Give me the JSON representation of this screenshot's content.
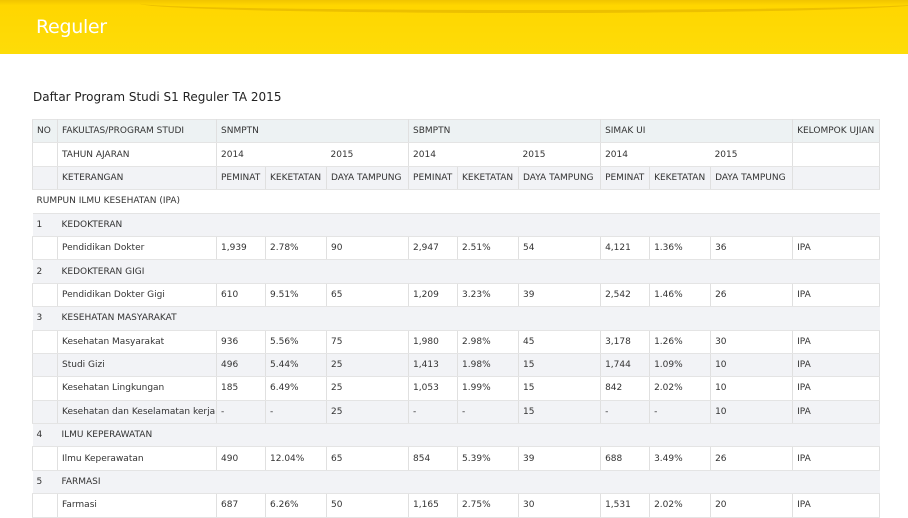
{
  "banner": {
    "title": "Reguler"
  },
  "page_title": "Daftar Program Studi S1 Reguler TA 2015",
  "table": {
    "header": {
      "no": "NO",
      "program": "FAKULTAS/PROGRAM STUDI",
      "snmptn": "SNMPTN",
      "sbmptn": "SBMPTN",
      "simak": "SIMAK UI",
      "kelompok": "KELOMPOK UJIAN"
    },
    "year_row": {
      "label": "TAHUN AJARAN",
      "snmptn_y1": "2014",
      "snmptn_y2": "2015",
      "sbmptn_y1": "2014",
      "sbmptn_y2": "2015",
      "simak_y1": "2014",
      "simak_y2": "2015"
    },
    "keterangan_row": {
      "label": "KETERANGAN",
      "peminat": "PEMINAT",
      "keketatan": "KEKETATAN",
      "daya_tampung": "DAYA TAMPUNG"
    },
    "rumpun": "RUMPUN ILMU KESEHATAN (IPA)",
    "faculties": [
      {
        "no": "1",
        "name": "KEDOKTERAN",
        "programs": [
          {
            "name": "Pendidikan Dokter",
            "values": [
              "1,939",
              "2.78%",
              "90",
              "2,947",
              "2.51%",
              "54",
              "4,121",
              "1.36%",
              "36"
            ],
            "kelompok": "IPA"
          }
        ]
      },
      {
        "no": "2",
        "name": "KEDOKTERAN GIGI",
        "programs": [
          {
            "name": "Pendidikan Dokter Gigi",
            "values": [
              "610",
              "9.51%",
              "65",
              "1,209",
              "3.23%",
              "39",
              "2,542",
              "1.46%",
              "26"
            ],
            "kelompok": "IPA"
          }
        ]
      },
      {
        "no": "3",
        "name": "KESEHATAN MASYARAKAT",
        "programs": [
          {
            "name": "Kesehatan Masyarakat",
            "values": [
              "936",
              "5.56%",
              "75",
              "1,980",
              "2.98%",
              "45",
              "3,178",
              "1.26%",
              "30"
            ],
            "kelompok": "IPA"
          },
          {
            "name": "Studi Gizi",
            "values": [
              "496",
              "5.44%",
              "25",
              "1,413",
              "1.98%",
              "15",
              "1,744",
              "1.09%",
              "10"
            ],
            "kelompok": "IPA"
          },
          {
            "name": "Kesehatan Lingkungan",
            "values": [
              "185",
              "6.49%",
              "25",
              "1,053",
              "1.99%",
              "15",
              "842",
              "2.02%",
              "10"
            ],
            "kelompok": "IPA"
          },
          {
            "name": "Kesehatan dan Keselamatan kerja",
            "values": [
              "-",
              "-",
              "25",
              "-",
              "-",
              "15",
              "-",
              "-",
              "10"
            ],
            "kelompok": "IPA"
          }
        ]
      },
      {
        "no": "4",
        "name": "ILMU KEPERAWATAN",
        "programs": [
          {
            "name": "Ilmu Keperawatan",
            "values": [
              "490",
              "12.04%",
              "65",
              "854",
              "5.39%",
              "39",
              "688",
              "3.49%",
              "26"
            ],
            "kelompok": "IPA"
          }
        ]
      },
      {
        "no": "5",
        "name": "FARMASI",
        "programs": [
          {
            "name": "Farmasi",
            "values": [
              "687",
              "6.26%",
              "50",
              "1,165",
              "2.75%",
              "30",
              "1,531",
              "2.02%",
              "20"
            ],
            "kelompok": "IPA"
          }
        ]
      }
    ]
  }
}
